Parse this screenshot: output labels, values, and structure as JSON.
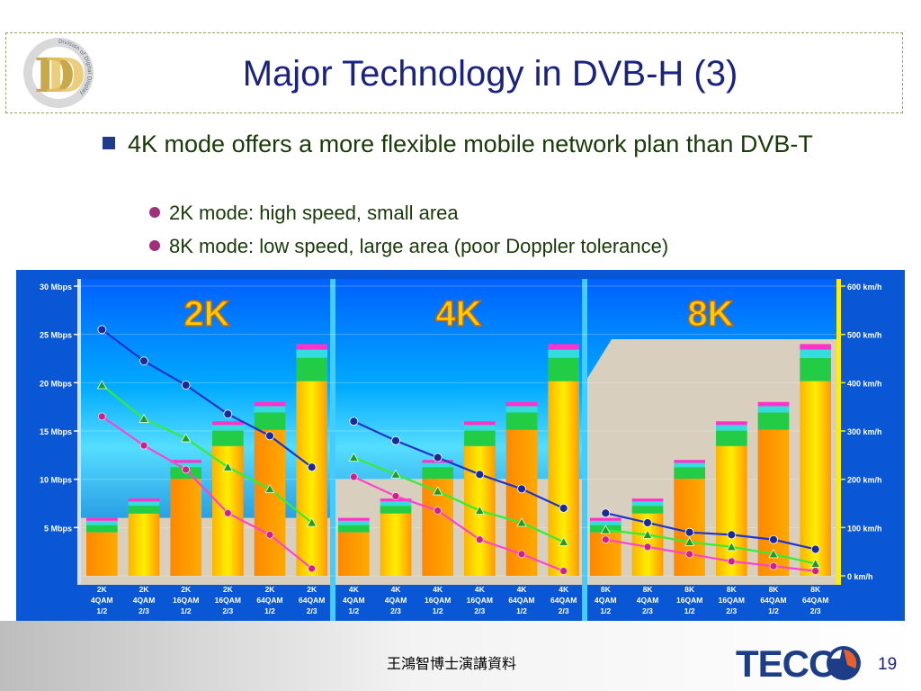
{
  "title": "Major Technology in DVB-H (3)",
  "logo": {
    "letters": "D",
    "ring_text": "Division of Digital Display"
  },
  "bullet_main": "4K mode offers a more flexible mobile network plan than DVB-T",
  "sub_bullets": [
    "2K mode: high speed, small area",
    "8K mode: low speed, large area (poor Doppler tolerance)"
  ],
  "footer_text": "王鴻智博士演講資料",
  "brand": "TECO",
  "page_number": "19",
  "colors": {
    "title": "#1a237e",
    "bar_fill": "#ffee00",
    "bar_orange": "#ff9900",
    "bar_green": "#22cc44",
    "bar_magenta": "#ff33cc",
    "line_blue": "#2233cc",
    "line_green": "#33ee33",
    "line_pink": "#ff44cc",
    "panel_blue": "#0080ff"
  },
  "chart_data": {
    "type": "bar",
    "panels": [
      "2K",
      "4K",
      "8K"
    ],
    "y_left_ticks": [
      "30 Mbps",
      "25 Mbps",
      "20 Mbps",
      "15 Mbps",
      "10 Mbps",
      "5 Mbps"
    ],
    "y_left_range": [
      0,
      30
    ],
    "y_right_ticks": [
      "600 km/h",
      "500 km/h",
      "400 km/h",
      "300 km/h",
      "200 km/h",
      "100 km/h",
      "0 km/h"
    ],
    "y_right_range": [
      0,
      600
    ],
    "categories": [
      [
        "2K",
        "4QAM",
        "1/2"
      ],
      [
        "2K",
        "4QAM",
        "2/3"
      ],
      [
        "2K",
        "16QAM",
        "1/2"
      ],
      [
        "2K",
        "16QAM",
        "2/3"
      ],
      [
        "2K",
        "64QAM",
        "1/2"
      ],
      [
        "2K",
        "64QAM",
        "2/3"
      ],
      [
        "4K",
        "4QAM",
        "1/2"
      ],
      [
        "4K",
        "4QAM",
        "2/3"
      ],
      [
        "4K",
        "16QAM",
        "1/2"
      ],
      [
        "4K",
        "16QAM",
        "2/3"
      ],
      [
        "4K",
        "64QAM",
        "1/2"
      ],
      [
        "4K",
        "64QAM",
        "2/3"
      ],
      [
        "8K",
        "4QAM",
        "1/2"
      ],
      [
        "8K",
        "4QAM",
        "2/3"
      ],
      [
        "8K",
        "16QAM",
        "1/2"
      ],
      [
        "8K",
        "16QAM",
        "2/3"
      ],
      [
        "8K",
        "64QAM",
        "1/2"
      ],
      [
        "8K",
        "64QAM",
        "2/3"
      ]
    ],
    "bitrate_mbps": [
      6,
      8,
      12,
      16,
      18,
      24,
      6,
      8,
      12,
      16,
      18,
      24,
      6,
      8,
      12,
      16,
      18,
      24
    ],
    "speed_series": [
      {
        "values": [
          510,
          445,
          395,
          335,
          290,
          225,
          320,
          280,
          245,
          210,
          180,
          140,
          130,
          110,
          90,
          85,
          75,
          55
        ]
      },
      {
        "values": [
          395,
          325,
          285,
          225,
          180,
          110,
          245,
          210,
          175,
          135,
          110,
          70,
          95,
          85,
          70,
          60,
          45,
          25
        ]
      },
      {
        "values": [
          330,
          270,
          220,
          130,
          85,
          15,
          205,
          165,
          135,
          75,
          45,
          10,
          75,
          60,
          45,
          30,
          20,
          10
        ]
      }
    ]
  }
}
